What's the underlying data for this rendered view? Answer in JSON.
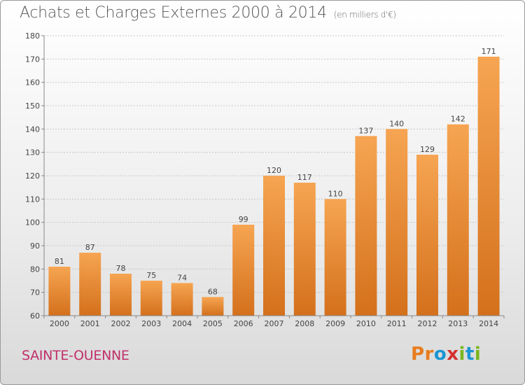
{
  "header": {
    "title": "Achats et Charges Externes 2000 à 2014",
    "unit": "(en milliers d'€)"
  },
  "footer": {
    "commune": "SAINTE-OUENNE",
    "logo_letters": [
      "P",
      "r",
      "o",
      "x",
      "i",
      "t",
      "i"
    ],
    "logo_colors": [
      "#e87c1e",
      "#e87c1e",
      "#1b95d3",
      "#d42f2f",
      "#7ab51d",
      "#1b95d3",
      "#7ab51d"
    ]
  },
  "colors": {
    "bar_light": "#f6a552",
    "bar_dark": "#d4701c",
    "grid": "#c8c8c8",
    "commune": "#c0306a"
  },
  "chart_data": {
    "type": "bar",
    "title": "Achats et Charges Externes 2000 à 2014",
    "subtitle": "(en milliers d'€)",
    "xlabel": "",
    "ylabel": "",
    "categories": [
      "2000",
      "2001",
      "2002",
      "2003",
      "2004",
      "2005",
      "2006",
      "2007",
      "2008",
      "2009",
      "2010",
      "2011",
      "2012",
      "2013",
      "2014"
    ],
    "values": [
      81,
      87,
      78,
      75,
      74,
      68,
      99,
      120,
      117,
      110,
      137,
      140,
      129,
      142,
      171
    ],
    "ylim": [
      60,
      180
    ],
    "yticks": [
      60,
      70,
      80,
      90,
      100,
      110,
      120,
      130,
      140,
      150,
      160,
      170,
      180
    ],
    "grid": true,
    "data_labels": true
  }
}
